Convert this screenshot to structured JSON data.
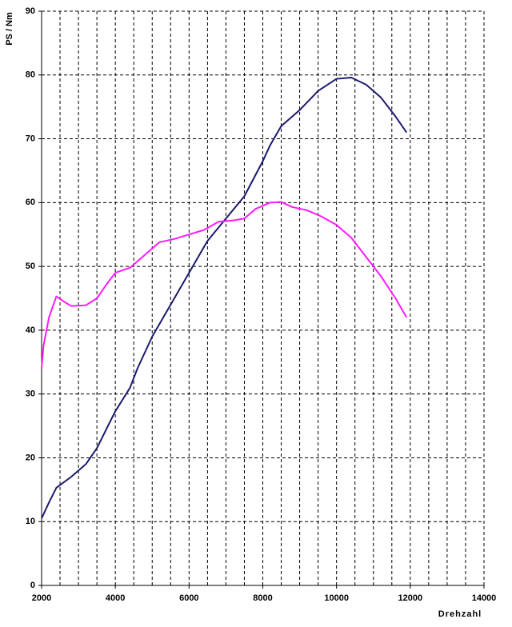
{
  "chart_data": {
    "type": "line",
    "y_label": "PS / Nm",
    "x_label": "Drehzahl",
    "xlim": [
      2000,
      14000
    ],
    "xticks": [
      2000,
      4000,
      6000,
      8000,
      10000,
      12000,
      14000
    ],
    "ylim": [
      0,
      90
    ],
    "yticks": [
      0,
      10,
      20,
      30,
      40,
      50,
      60,
      70,
      80,
      90
    ],
    "grid": true,
    "series": [
      {
        "color": "#1a1a6e",
        "x": [
          2000,
          2200,
          2400,
          2800,
          3200,
          3500,
          3800,
          4000,
          4400,
          4600,
          5000,
          5500,
          6000,
          6500,
          7000,
          7500,
          8000,
          8200,
          8500,
          9000,
          9500,
          10000,
          10400,
          10800,
          11200,
          11600,
          11900
        ],
        "values": [
          10.5,
          13,
          15.3,
          17,
          19,
          21.5,
          25,
          27.3,
          31,
          34,
          39,
          44,
          49,
          54,
          57.5,
          61,
          66.5,
          69,
          72,
          74.5,
          77.5,
          79.4,
          79.6,
          78.5,
          76.5,
          73.5,
          71
        ]
      },
      {
        "color": "#ff1aff",
        "x": [
          2000,
          2050,
          2200,
          2400,
          2600,
          2800,
          3200,
          3500,
          3800,
          4000,
          4400,
          4800,
          5200,
          5600,
          6000,
          6400,
          6800,
          7200,
          7500,
          7800,
          8200,
          8500,
          8800,
          9200,
          9600,
          10000,
          10400,
          10800,
          11200,
          11600,
          11900
        ],
        "values": [
          34,
          37.5,
          42,
          45.3,
          44.5,
          43.8,
          43.9,
          45,
          47.5,
          49,
          49.8,
          51.8,
          53.8,
          54.3,
          55,
          55.7,
          57,
          57.2,
          57.5,
          59,
          60,
          60.1,
          59.3,
          58.8,
          57.8,
          56.5,
          54.5,
          51.5,
          48.5,
          45,
          42
        ]
      }
    ]
  }
}
